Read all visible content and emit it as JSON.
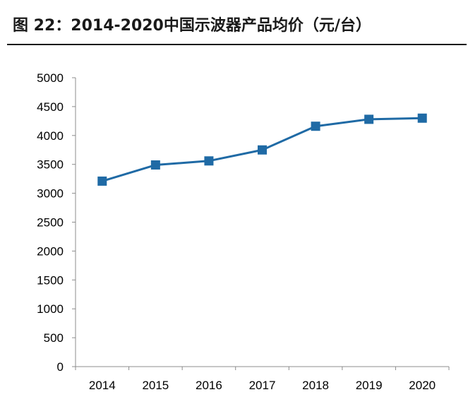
{
  "title": "图 22：2014-2020中国示波器产品均价（元/台）",
  "colors": {
    "series": "#1f6aa5",
    "axis": "#8c8c8c",
    "text": "#000000"
  },
  "chart_data": {
    "type": "line",
    "title": "图 22：2014-2020中国示波器产品均价（元/台）",
    "categories": [
      "2014",
      "2015",
      "2016",
      "2017",
      "2018",
      "2019",
      "2020"
    ],
    "series": [
      {
        "values": [
          3210,
          3490,
          3560,
          3750,
          4160,
          4280,
          4300
        ]
      }
    ],
    "ylim": [
      0,
      5000
    ],
    "yticks": [
      "0",
      "500",
      "1000",
      "1500",
      "2000",
      "2500",
      "3000",
      "3500",
      "4000",
      "4500",
      "5000"
    ],
    "marker": "square",
    "grid": false,
    "legend": "none"
  }
}
